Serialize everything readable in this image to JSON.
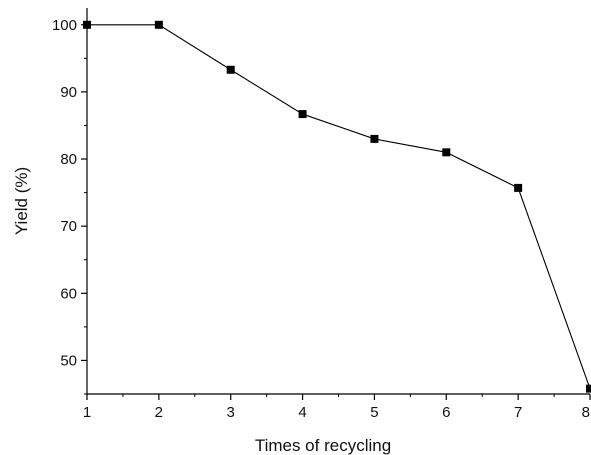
{
  "chart_data": {
    "type": "line",
    "title": "",
    "xlabel": "Times of recycling",
    "ylabel": "Yield (%)",
    "x": [
      1,
      2,
      3,
      4,
      5,
      6,
      7,
      8
    ],
    "series": [
      {
        "values": [
          100,
          100,
          93.3,
          86.7,
          83.0,
          81.0,
          75.7,
          45.8
        ]
      }
    ],
    "xlim": [
      1,
      8
    ],
    "ylim": [
      45,
      102.5
    ],
    "xticks": [
      "1",
      "2",
      "3",
      "4",
      "5",
      "6",
      "7",
      "8"
    ],
    "yticks": [
      "50",
      "60",
      "70",
      "80",
      "90",
      "100"
    ],
    "grid": false,
    "legend": "none",
    "marker": "filled-square",
    "colors": {
      "line": "#000000",
      "marker": "#000000",
      "axis": "#000000"
    }
  }
}
